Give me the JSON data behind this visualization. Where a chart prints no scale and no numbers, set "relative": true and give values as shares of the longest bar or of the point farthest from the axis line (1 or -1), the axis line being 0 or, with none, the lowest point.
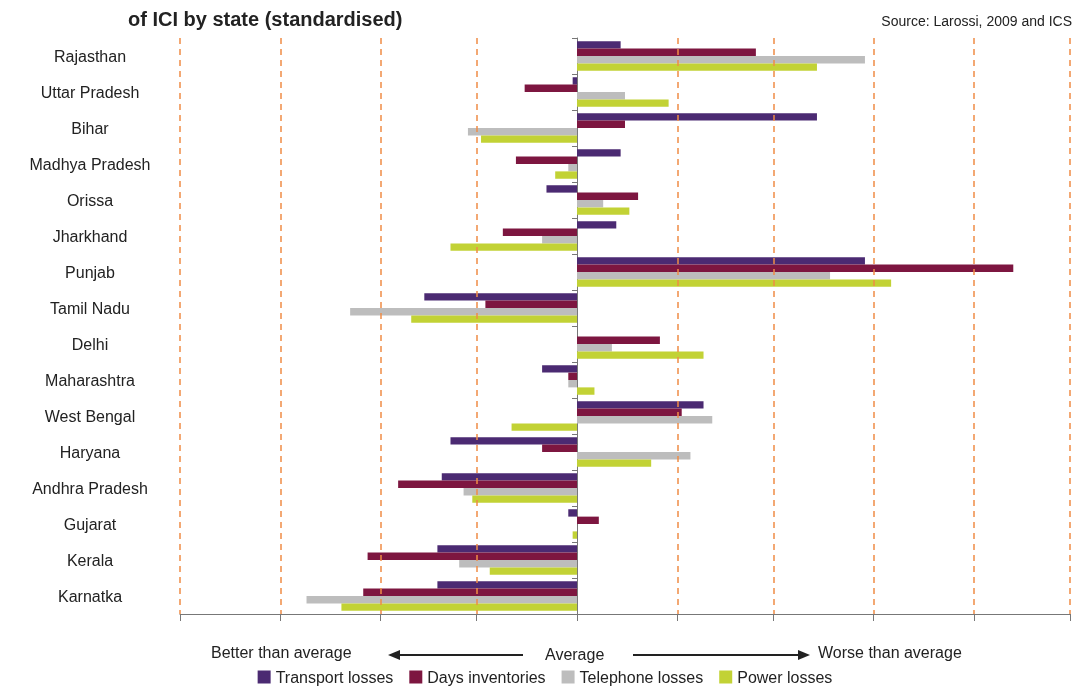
{
  "chart_data": {
    "type": "bar",
    "orientation": "horizontal",
    "relative": true,
    "title": "of ICI by state (standardised)",
    "annotations": [
      "Source: Larossi, 2009 and ICS",
      "Better than average",
      "Average",
      "Worse than average"
    ],
    "categories": [
      "Rajasthan",
      "Uttar Pradesh",
      "Bihar",
      "Madhya Pradesh",
      "Orissa",
      "Jharkhand",
      "Punjab",
      "Tamil Nadu",
      "Delhi",
      "Maharashtra",
      "West Bengal",
      "Haryana",
      "Andhra Pradesh",
      "Gujarat",
      "Kerala",
      "Karnatka"
    ],
    "series": [
      {
        "name": "Transport losses",
        "color": "#4b2a72",
        "values": [
          0.1,
          -0.01,
          0.55,
          0.1,
          -0.07,
          0.09,
          0.66,
          -0.35,
          0,
          -0.08,
          0.29,
          -0.29,
          -0.31,
          -0.02,
          -0.32,
          -0.32
        ]
      },
      {
        "name": "Days inventories",
        "color": "#7d1640",
        "values": [
          0.41,
          -0.12,
          0.11,
          -0.14,
          0.14,
          -0.17,
          1.0,
          -0.21,
          0.19,
          -0.02,
          0.24,
          -0.08,
          -0.41,
          0.05,
          -0.48,
          -0.49
        ]
      },
      {
        "name": "Telephone losses",
        "color": "#bdbdbd",
        "values": [
          0.66,
          0.11,
          -0.25,
          -0.02,
          0.06,
          -0.08,
          0.58,
          -0.52,
          0.08,
          -0.02,
          0.31,
          0.26,
          -0.26,
          0,
          -0.27,
          -0.62
        ]
      },
      {
        "name": "Power losses",
        "color": "#c2d235",
        "values": [
          0.55,
          0.21,
          -0.22,
          -0.05,
          0.12,
          -0.29,
          0.72,
          -0.38,
          0.29,
          0.04,
          -0.15,
          0.17,
          -0.24,
          -0.01,
          -0.2,
          -0.54
        ]
      }
    ],
    "ref_lines": [
      {
        "axis": "x",
        "value": -0.91,
        "color": "#f08c45",
        "line_style": "dashed"
      },
      {
        "axis": "x",
        "value": -0.68,
        "color": "#f08c45",
        "line_style": "dashed"
      },
      {
        "axis": "x",
        "value": -0.45,
        "color": "#f08c45",
        "line_style": "dashed"
      },
      {
        "axis": "x",
        "value": -0.23,
        "color": "#f08c45",
        "line_style": "dashed"
      },
      {
        "axis": "x",
        "value": 0.23,
        "color": "#f08c45",
        "line_style": "dashed"
      },
      {
        "axis": "x",
        "value": 0.45,
        "color": "#f08c45",
        "line_style": "dashed"
      },
      {
        "axis": "x",
        "value": 0.68,
        "color": "#f08c45",
        "line_style": "dashed"
      },
      {
        "axis": "x",
        "value": 0.91,
        "color": "#f08c45",
        "line_style": "dashed"
      },
      {
        "axis": "x",
        "value": 1.13,
        "color": "#f08c45",
        "line_style": "dashed"
      }
    ],
    "legend": "bottom"
  }
}
